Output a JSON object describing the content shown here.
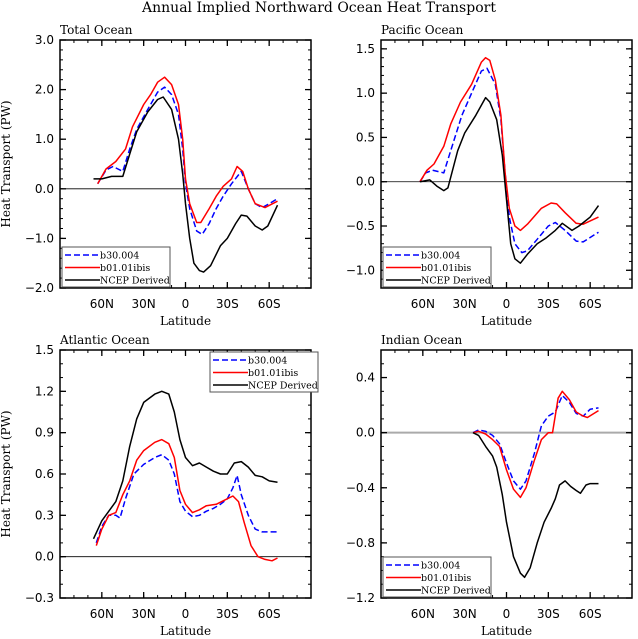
{
  "chart_data": [
    {
      "type": "line",
      "title": "Total Ocean",
      "xlabel": "Latitude",
      "ylabel": "Heat Transport (PW)",
      "xlim": [
        90,
        -90
      ],
      "ylim": [
        -2.0,
        3.0
      ],
      "xticks": [
        60,
        30,
        0,
        -30,
        -60
      ],
      "xtick_labels": [
        "60N",
        "30N",
        "0",
        "30S",
        "60S"
      ],
      "yticks": [
        3.0,
        2.0,
        1.0,
        0.0,
        -1.0,
        -2.0
      ],
      "ytick_labels": [
        "3.0",
        "2.0",
        "1.0",
        "0.0",
        "−1.0",
        "−2.0"
      ],
      "ystep_minor": 0.2,
      "legend_position": "bottom-left",
      "zero_line_color": "#000000",
      "series": [
        {
          "name": "b30.004",
          "color": "#0000ff",
          "dash": true,
          "x": [
            63,
            57,
            52,
            45,
            40,
            35,
            27,
            20,
            15,
            10,
            5,
            2,
            0,
            -3,
            -8,
            -12,
            -17,
            -22,
            -27,
            -33,
            -40,
            -45,
            -50,
            -55,
            -60,
            -66
          ],
          "y": [
            0.1,
            0.38,
            0.45,
            0.35,
            0.8,
            1.2,
            1.6,
            1.95,
            2.05,
            1.9,
            1.5,
            0.8,
            0.1,
            -0.4,
            -0.85,
            -0.92,
            -0.7,
            -0.4,
            -0.15,
            0.1,
            0.35,
            0.0,
            -0.3,
            -0.38,
            -0.3,
            -0.2
          ]
        },
        {
          "name": "b01.01ibis",
          "color": "#ff0000",
          "dash": false,
          "x": [
            63,
            57,
            50,
            43,
            38,
            30,
            25,
            20,
            15,
            10,
            5,
            2,
            0,
            -3,
            -8,
            -11,
            -17,
            -22,
            -27,
            -33,
            -37,
            -41,
            -45,
            -50,
            -57,
            -66
          ],
          "y": [
            0.1,
            0.4,
            0.55,
            0.8,
            1.25,
            1.7,
            1.9,
            2.15,
            2.25,
            2.1,
            1.7,
            1.0,
            0.2,
            -0.3,
            -0.68,
            -0.68,
            -0.4,
            -0.15,
            0.05,
            0.2,
            0.45,
            0.35,
            0.0,
            -0.3,
            -0.38,
            -0.25
          ]
        },
        {
          "name": "NCEP Derived",
          "color": "#000000",
          "dash": false,
          "x": [
            66,
            60,
            53,
            45,
            40,
            35,
            27,
            20,
            16,
            10,
            5,
            2,
            0,
            -3,
            -6,
            -10,
            -13,
            -18,
            -25,
            -30,
            -36,
            -40,
            -44,
            -50,
            -55,
            -59,
            -66
          ],
          "y": [
            0.2,
            0.2,
            0.25,
            0.25,
            0.7,
            1.15,
            1.55,
            1.8,
            1.85,
            1.6,
            1.0,
            0.3,
            -0.3,
            -1.0,
            -1.5,
            -1.65,
            -1.68,
            -1.55,
            -1.15,
            -1.0,
            -0.7,
            -0.53,
            -0.55,
            -0.75,
            -0.83,
            -0.75,
            -0.33
          ]
        }
      ]
    },
    {
      "type": "line",
      "title": "Pacific Ocean",
      "xlabel": "Latitude",
      "ylabel": "",
      "xlim": [
        90,
        -90
      ],
      "ylim": [
        -1.2,
        1.6
      ],
      "xticks": [
        60,
        30,
        0,
        -30,
        -60
      ],
      "xtick_labels": [
        "60N",
        "30N",
        "0",
        "30S",
        "60S"
      ],
      "yticks": [
        1.5,
        1.0,
        0.5,
        0.0,
        -0.5,
        -1.0
      ],
      "ytick_labels": [
        "1.5",
        "1.0",
        "0.5",
        "0.0",
        "−0.5",
        "−1.0"
      ],
      "ystep_minor": 0.1,
      "legend_position": "bottom-left",
      "zero_line_color": "#000000",
      "series": [
        {
          "name": "b30.004",
          "color": "#0000ff",
          "dash": true,
          "x": [
            62,
            58,
            53,
            45,
            40,
            32,
            25,
            18,
            14,
            8,
            4,
            1,
            -2,
            -6,
            -11,
            -15,
            -22,
            -30,
            -35,
            -42,
            -50,
            -55,
            -66
          ],
          "y": [
            0,
            0.1,
            0.13,
            0.1,
            0.35,
            0.75,
            1.0,
            1.25,
            1.28,
            1.1,
            0.7,
            0.1,
            -0.4,
            -0.7,
            -0.8,
            -0.78,
            -0.65,
            -0.5,
            -0.46,
            -0.55,
            -0.67,
            -0.68,
            -0.57
          ]
        },
        {
          "name": "b01.01ibis",
          "color": "#ff0000",
          "dash": false,
          "x": [
            62,
            57,
            52,
            45,
            40,
            33,
            25,
            18,
            15,
            12,
            8,
            4,
            1,
            -2,
            -6,
            -10,
            -15,
            -25,
            -32,
            -36,
            -42,
            -50,
            -55,
            -66
          ],
          "y": [
            0,
            0.13,
            0.2,
            0.4,
            0.65,
            0.9,
            1.1,
            1.35,
            1.4,
            1.37,
            1.15,
            0.75,
            0.1,
            -0.3,
            -0.5,
            -0.55,
            -0.48,
            -0.3,
            -0.24,
            -0.25,
            -0.35,
            -0.47,
            -0.48,
            -0.4
          ]
        },
        {
          "name": "NCEP Derived",
          "color": "#000000",
          "dash": false,
          "x": [
            62,
            55,
            50,
            45,
            42,
            35,
            30,
            22,
            15,
            12,
            7,
            3,
            0,
            -3,
            -6,
            -10,
            -15,
            -22,
            -28,
            -35,
            -40,
            -47,
            -52,
            -60,
            -66
          ],
          "y": [
            0,
            0.02,
            -0.05,
            -0.1,
            -0.07,
            0.35,
            0.55,
            0.75,
            0.95,
            0.9,
            0.7,
            0.3,
            -0.2,
            -0.7,
            -0.87,
            -0.92,
            -0.82,
            -0.7,
            -0.64,
            -0.55,
            -0.47,
            -0.55,
            -0.5,
            -0.4,
            -0.27
          ]
        }
      ]
    },
    {
      "type": "line",
      "title": "Atlantic Ocean",
      "xlabel": "Latitude",
      "ylabel": "Heat Transport (PW)",
      "xlim": [
        90,
        -90
      ],
      "ylim": [
        -0.3,
        1.5
      ],
      "xticks": [
        60,
        30,
        0,
        -30,
        -60
      ],
      "xtick_labels": [
        "60N",
        "30N",
        "0",
        "30S",
        "60S"
      ],
      "yticks": [
        1.5,
        1.2,
        0.9,
        0.6,
        0.3,
        0.0,
        -0.3
      ],
      "ytick_labels": [
        "1.5",
        "1.2",
        "0.9",
        "0.6",
        "0.3",
        "0.0",
        "−0.3"
      ],
      "ystep_minor": 0.1,
      "legend_position": "top-right",
      "zero_line_color": "#000000",
      "series": [
        {
          "name": "b30.004",
          "color": "#0000ff",
          "dash": true,
          "x": [
            64,
            60,
            55,
            50,
            47,
            43,
            37,
            30,
            22,
            17,
            12,
            8,
            4,
            0,
            -5,
            -10,
            -15,
            -20,
            -25,
            -30,
            -34,
            -37,
            -40,
            -45,
            -50,
            -55,
            -66
          ],
          "y": [
            0.1,
            0.22,
            0.3,
            0.3,
            0.28,
            0.42,
            0.6,
            0.67,
            0.72,
            0.74,
            0.7,
            0.6,
            0.4,
            0.33,
            0.29,
            0.3,
            0.33,
            0.35,
            0.38,
            0.42,
            0.5,
            0.59,
            0.45,
            0.3,
            0.2,
            0.18,
            0.18
          ]
        },
        {
          "name": "b01.01ibis",
          "color": "#ff0000",
          "dash": false,
          "x": [
            64,
            60,
            55,
            50,
            45,
            40,
            35,
            30,
            22,
            17,
            12,
            8,
            4,
            0,
            -5,
            -10,
            -15,
            -22,
            -28,
            -34,
            -38,
            -42,
            -47,
            -52,
            -57,
            -62,
            -66
          ],
          "y": [
            0.08,
            0.2,
            0.3,
            0.32,
            0.45,
            0.55,
            0.7,
            0.77,
            0.83,
            0.85,
            0.82,
            0.72,
            0.48,
            0.38,
            0.32,
            0.34,
            0.37,
            0.38,
            0.41,
            0.44,
            0.4,
            0.25,
            0.08,
            0.0,
            -0.02,
            -0.03,
            -0.01
          ]
        },
        {
          "name": "NCEP Derived",
          "color": "#000000",
          "dash": false,
          "x": [
            66,
            60,
            55,
            50,
            45,
            40,
            35,
            30,
            22,
            17,
            12,
            8,
            4,
            0,
            -5,
            -10,
            -15,
            -20,
            -25,
            -30,
            -35,
            -40,
            -45,
            -50,
            -55,
            -60,
            -66
          ],
          "y": [
            0.13,
            0.26,
            0.33,
            0.4,
            0.55,
            0.8,
            1.0,
            1.12,
            1.18,
            1.2,
            1.18,
            1.05,
            0.85,
            0.72,
            0.66,
            0.68,
            0.65,
            0.62,
            0.6,
            0.6,
            0.68,
            0.69,
            0.65,
            0.59,
            0.58,
            0.55,
            0.54
          ]
        }
      ]
    },
    {
      "type": "line",
      "title": "Indian Ocean",
      "xlabel": "Latitude",
      "ylabel": "",
      "xlim": [
        90,
        -90
      ],
      "ylim": [
        -1.2,
        0.6
      ],
      "xticks": [
        60,
        30,
        0,
        -30,
        -60
      ],
      "xtick_labels": [
        "60N",
        "30N",
        "0",
        "30S",
        "60S"
      ],
      "yticks": [
        0.4,
        0.0,
        -0.4,
        -0.8,
        -1.2
      ],
      "ytick_labels": [
        "0.4",
        "0.0",
        "−0.4",
        "−0.8",
        "−1.2"
      ],
      "ystep_minor": 0.1,
      "legend_position": "bottom-left",
      "zero_line_color": "#aaaaaa",
      "series": [
        {
          "name": "b30.004",
          "color": "#0000ff",
          "dash": true,
          "x": [
            24,
            20,
            15,
            10,
            5,
            0,
            -5,
            -10,
            -14,
            -20,
            -25,
            -30,
            -35,
            -40,
            -45,
            -50,
            -55,
            -60,
            -66
          ],
          "y": [
            0,
            0.02,
            0.01,
            -0.02,
            -0.08,
            -0.22,
            -0.35,
            -0.41,
            -0.35,
            -0.15,
            0.05,
            0.12,
            0.15,
            0.27,
            0.22,
            0.14,
            0.12,
            0.17,
            0.18
          ]
        },
        {
          "name": "b01.01ibis",
          "color": "#ff0000",
          "dash": false,
          "x": [
            24,
            20,
            15,
            10,
            5,
            0,
            -5,
            -10,
            -14,
            -20,
            -25,
            -30,
            -33,
            -37,
            -40,
            -45,
            -50,
            -55,
            -58,
            -66
          ],
          "y": [
            0,
            0.01,
            -0.01,
            -0.05,
            -0.1,
            -0.27,
            -0.41,
            -0.47,
            -0.4,
            -0.2,
            -0.05,
            0,
            0,
            0.25,
            0.3,
            0.24,
            0.15,
            0.12,
            0.11,
            0.16
          ]
        },
        {
          "name": "NCEP Derived",
          "color": "#000000",
          "dash": false,
          "x": [
            24,
            20,
            15,
            10,
            7,
            3,
            0,
            -5,
            -10,
            -13,
            -17,
            -22,
            -27,
            -32,
            -35,
            -38,
            -42,
            -46,
            -50,
            -53,
            -57,
            -60,
            -66
          ],
          "y": [
            0,
            -0.02,
            -0.1,
            -0.17,
            -0.25,
            -0.45,
            -0.65,
            -0.9,
            -1.02,
            -1.05,
            -0.98,
            -0.8,
            -0.65,
            -0.55,
            -0.48,
            -0.38,
            -0.35,
            -0.39,
            -0.42,
            -0.44,
            -0.38,
            -0.37,
            -0.37
          ]
        }
      ]
    }
  ],
  "figure": {
    "title": "Annual Implied Northward Ocean Heat Transport"
  }
}
